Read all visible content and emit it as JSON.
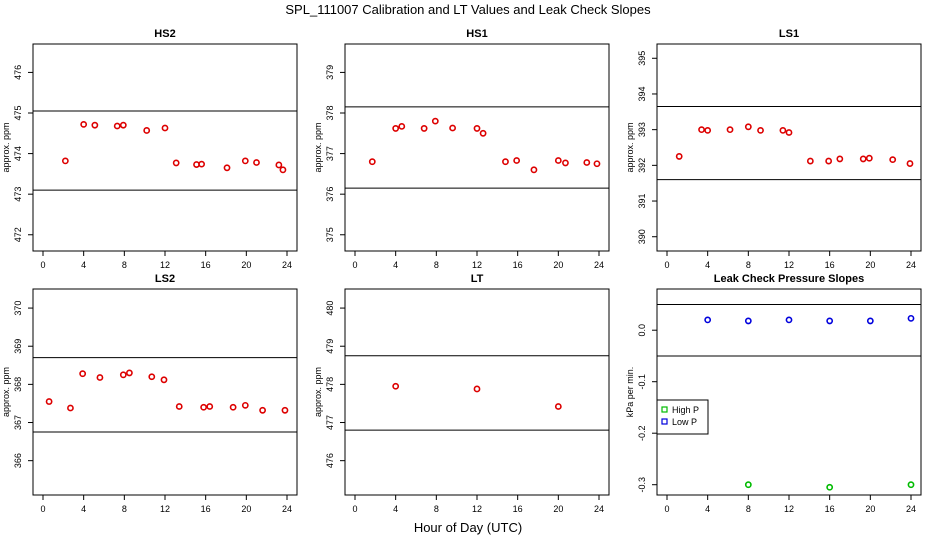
{
  "figure": {
    "title": "SPL_111007  Calibration and LT Values and Leak Check Slopes",
    "xlabel": "Hour of Day (UTC)"
  },
  "chart_data": [
    {
      "type": "scatter",
      "title": "HS2",
      "ylabel": "approx. ppm",
      "xlim": [
        0,
        24
      ],
      "ylim": [
        471.6,
        476.7
      ],
      "xticks": [
        0,
        4,
        8,
        12,
        16,
        20,
        24
      ],
      "yticks": [
        472,
        473,
        474,
        475,
        476
      ],
      "hlines": [
        475.05,
        473.1
      ],
      "marker_color": "#dd0000",
      "series": [
        {
          "x": [
            2.2,
            4.0,
            5.1,
            7.3,
            7.9,
            10.2,
            12.0,
            13.1,
            15.1,
            15.6,
            18.1,
            19.9,
            21.0,
            23.2,
            23.6
          ],
          "y": [
            473.82,
            474.72,
            474.7,
            474.68,
            474.7,
            474.57,
            474.63,
            473.77,
            473.73,
            473.74,
            473.65,
            473.82,
            473.78,
            473.72,
            473.6
          ]
        }
      ]
    },
    {
      "type": "scatter",
      "title": "HS1",
      "ylabel": "approx. ppm",
      "xlim": [
        0,
        24
      ],
      "ylim": [
        374.6,
        379.7
      ],
      "xticks": [
        0,
        4,
        8,
        12,
        16,
        20,
        24
      ],
      "yticks": [
        375,
        376,
        377,
        378,
        379
      ],
      "hlines": [
        378.15,
        376.15
      ],
      "marker_color": "#dd0000",
      "series": [
        {
          "x": [
            1.7,
            4.0,
            4.6,
            6.8,
            7.9,
            9.6,
            12.0,
            12.6,
            14.8,
            15.9,
            17.6,
            20.0,
            20.7,
            22.8,
            23.8
          ],
          "y": [
            376.8,
            377.62,
            377.67,
            377.62,
            377.8,
            377.63,
            377.62,
            377.5,
            376.8,
            376.83,
            376.6,
            376.83,
            376.77,
            376.78,
            376.75
          ]
        }
      ]
    },
    {
      "type": "scatter",
      "title": "LS1",
      "ylabel": "approx. ppm",
      "xlim": [
        0,
        24
      ],
      "ylim": [
        389.6,
        395.4
      ],
      "xticks": [
        0,
        4,
        8,
        12,
        16,
        20,
        24
      ],
      "yticks": [
        390,
        391,
        392,
        393,
        394,
        395
      ],
      "hlines": [
        393.65,
        391.6
      ],
      "marker_color": "#dd0000",
      "series": [
        {
          "x": [
            1.2,
            3.4,
            4.0,
            6.2,
            8.0,
            9.2,
            11.4,
            12.0,
            14.1,
            15.9,
            17.0,
            19.3,
            19.9,
            22.2,
            23.9
          ],
          "y": [
            392.25,
            393.0,
            392.98,
            393.0,
            393.08,
            392.98,
            392.98,
            392.92,
            392.12,
            392.12,
            392.18,
            392.18,
            392.2,
            392.16,
            392.05
          ]
        }
      ]
    },
    {
      "type": "scatter",
      "title": "LS2",
      "ylabel": "approx. ppm",
      "xlim": [
        0,
        24
      ],
      "ylim": [
        365.1,
        370.5
      ],
      "xticks": [
        0,
        4,
        8,
        12,
        16,
        20,
        24
      ],
      "yticks": [
        366,
        367,
        368,
        369,
        370
      ],
      "hlines": [
        368.7,
        366.75
      ],
      "marker_color": "#dd0000",
      "series": [
        {
          "x": [
            0.6,
            2.7,
            3.9,
            5.6,
            7.9,
            8.5,
            10.7,
            11.9,
            13.4,
            15.8,
            16.4,
            18.7,
            19.9,
            21.6,
            23.8
          ],
          "y": [
            367.55,
            367.38,
            368.28,
            368.18,
            368.25,
            368.3,
            368.2,
            368.12,
            367.42,
            367.4,
            367.42,
            367.4,
            367.45,
            367.32,
            367.32
          ]
        }
      ]
    },
    {
      "type": "scatter",
      "title": "LT",
      "ylabel": "approx. ppm",
      "xlim": [
        0,
        24
      ],
      "ylim": [
        475.1,
        480.5
      ],
      "xticks": [
        0,
        4,
        8,
        12,
        16,
        20,
        24
      ],
      "yticks": [
        476,
        477,
        478,
        479,
        480
      ],
      "hlines": [
        478.75,
        476.8
      ],
      "marker_color": "#dd0000",
      "series": [
        {
          "x": [
            4.0,
            12.0,
            20.0
          ],
          "y": [
            477.95,
            477.88,
            477.42
          ]
        }
      ]
    },
    {
      "type": "scatter",
      "title": "Leak Check Pressure Slopes",
      "ylabel": "kPa per min.",
      "xlim": [
        0,
        24
      ],
      "ylim": [
        -0.32,
        0.08
      ],
      "xticks": [
        0,
        4,
        8,
        12,
        16,
        20,
        24
      ],
      "yticks": [
        0.0,
        -0.1,
        -0.2,
        -0.3
      ],
      "ytick_labels": [
        "0.0",
        "-0.1",
        "-0.2",
        "-0.3"
      ],
      "hlines": [
        0.05,
        -0.05
      ],
      "legend_position": "left",
      "series": [
        {
          "name": "High P",
          "color": "#00bb00",
          "x": [
            8,
            16,
            24
          ],
          "y": [
            -0.3,
            -0.305,
            -0.3
          ]
        },
        {
          "name": "Low P",
          "color": "#0000dd",
          "x": [
            4,
            8,
            12,
            16,
            20,
            24
          ],
          "y": [
            0.02,
            0.018,
            0.02,
            0.018,
            0.018,
            0.023
          ]
        }
      ]
    }
  ]
}
